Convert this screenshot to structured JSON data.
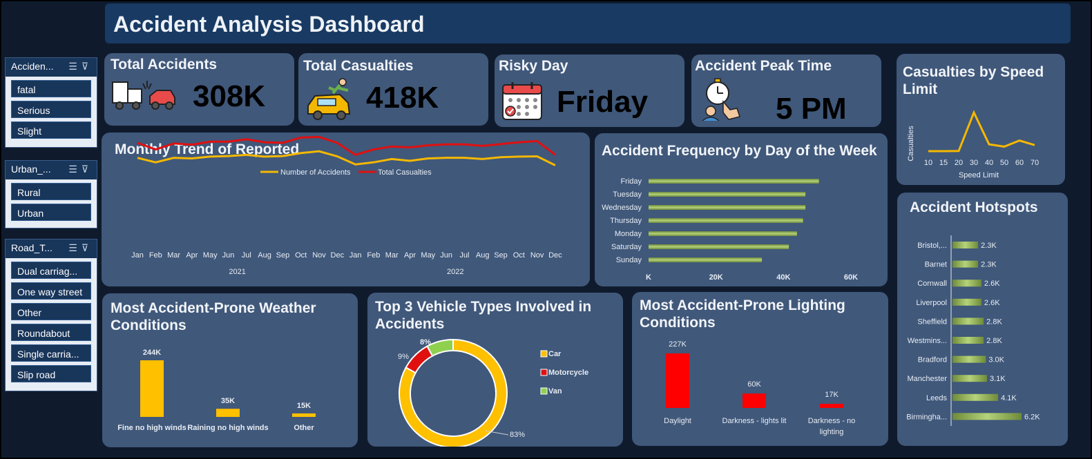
{
  "title": "Accident Analysis Dashboard",
  "slicers": [
    {
      "label": "Acciden...",
      "items": [
        "fatal",
        "Serious",
        "Slight"
      ]
    },
    {
      "label": "Urban_...",
      "items": [
        "Rural",
        "Urban"
      ]
    },
    {
      "label": "Road_T...",
      "items": [
        "Dual carriag...",
        "One way street",
        "Other",
        "Roundabout",
        "Single carria...",
        "Slip road"
      ]
    }
  ],
  "kpis": {
    "total_accidents": {
      "label": "Total Accidents",
      "value": "308K"
    },
    "total_casualties": {
      "label": "Total Casualties",
      "value": "418K"
    },
    "risky_day": {
      "label": "Risky Day",
      "value": "Friday"
    },
    "peak_time": {
      "label": "Accident Peak Time",
      "value": "5 PM"
    }
  },
  "colors": {
    "accidents": "#f5b800",
    "casualties": "#e01010",
    "car": "#ffc000",
    "motorcycle": "#e01010",
    "van": "#8fd14f",
    "bar_green": "#9bbb59",
    "bar_red": "#ff0000"
  },
  "chart_data": [
    {
      "id": "monthly",
      "type": "line",
      "title": "Monthly Trend of Reported",
      "categories": [
        "Jan",
        "Feb",
        "Mar",
        "Apr",
        "May",
        "Jun",
        "Jul",
        "Aug",
        "Sep",
        "Oct",
        "Nov",
        "Dec",
        "Jan",
        "Feb",
        "Mar",
        "Apr",
        "May",
        "Jun",
        "Jul",
        "Aug",
        "Sep",
        "Oct",
        "Nov",
        "Dec"
      ],
      "groups": [
        {
          "label": "2021",
          "span": 12
        },
        {
          "label": "2022",
          "span": 12
        }
      ],
      "series": [
        {
          "name": "Number of Accidents",
          "values": [
            13000,
            11500,
            13000,
            12800,
            13400,
            13600,
            14000,
            13400,
            13600,
            14600,
            15200,
            13500,
            10800,
            11500,
            12600,
            12000,
            12800,
            13000,
            13000,
            12600,
            13200,
            13400,
            13500,
            10500
          ]
        },
        {
          "name": "Total Casualties",
          "values": [
            18000,
            15800,
            17800,
            17400,
            18400,
            18400,
            19200,
            18200,
            18000,
            19800,
            20000,
            18000,
            14000,
            15800,
            16800,
            16500,
            17200,
            17500,
            17500,
            17000,
            17600,
            18200,
            18600,
            14000
          ]
        }
      ],
      "ylim": [
        0,
        30000
      ]
    },
    {
      "id": "dayofweek",
      "type": "bar",
      "title": "Accident Frequency by Day of the Week",
      "categories": [
        "Friday",
        "Tuesday",
        "Wednesday",
        "Thursday",
        "Monday",
        "Saturday",
        "Sunday"
      ],
      "values": [
        50500,
        46500,
        46500,
        45800,
        44000,
        41600,
        33600
      ],
      "ticks": [
        "K",
        "20K",
        "40K",
        "60K"
      ],
      "xlim": [
        0,
        60000
      ]
    },
    {
      "id": "speed",
      "type": "line",
      "title": "Casualties by Speed Limit",
      "categories": [
        "10",
        "15",
        "20",
        "30",
        "40",
        "50",
        "60",
        "70"
      ],
      "values": [
        0,
        0,
        1000,
        255000,
        45000,
        30000,
        70000,
        40000
      ],
      "xlabel": "Speed Limit",
      "ylabel": "Casualties"
    },
    {
      "id": "hotspots",
      "type": "bar",
      "title": "Accident Hotspots",
      "categories": [
        "Bristol,...",
        "Barnet",
        "Cornwall",
        "Liverpool",
        "Sheffield",
        "Westmins...",
        "Bradford",
        "Manchester",
        "Leeds",
        "Birmingha..."
      ],
      "values": [
        2300,
        2300,
        2600,
        2600,
        2800,
        2800,
        3000,
        3100,
        4100,
        6200
      ],
      "labels": [
        "2.3K",
        "2.3K",
        "2.6K",
        "2.6K",
        "2.8K",
        "2.8K",
        "3.0K",
        "3.1K",
        "4.1K",
        "6.2K"
      ]
    },
    {
      "id": "weather",
      "type": "bar",
      "title": "Most Accident-Prone Weather Conditions",
      "categories": [
        "Fine no high winds",
        "Raining no high winds",
        "Other"
      ],
      "values": [
        244000,
        35000,
        15000
      ],
      "labels": [
        "244K",
        "35K",
        "15K"
      ]
    },
    {
      "id": "vehicle",
      "type": "pie",
      "title": "Top 3 Vehicle Types Involved in Accidents",
      "categories": [
        "Car",
        "Motorcycle",
        "Van"
      ],
      "values": [
        83,
        9,
        8
      ],
      "labels": [
        "83%",
        "9%",
        "8%"
      ]
    },
    {
      "id": "lighting",
      "type": "bar",
      "title": "Most Accident-Prone Lighting Conditions",
      "categories": [
        "Daylight",
        "Darkness - lights lit",
        "Darkness - no lighting"
      ],
      "values": [
        227000,
        60000,
        17000
      ],
      "labels": [
        "227K",
        "60K",
        "17K"
      ]
    }
  ]
}
